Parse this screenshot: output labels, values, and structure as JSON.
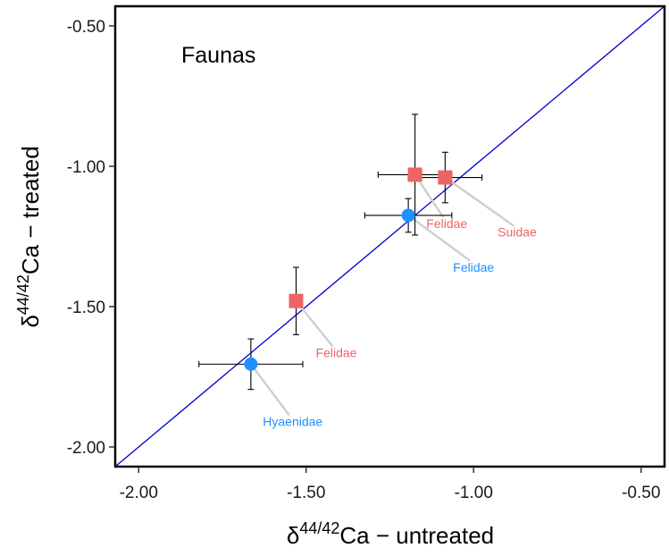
{
  "chart_data": {
    "type": "scatter",
    "title": "Faunas",
    "xlabel": {
      "prefix": "δ",
      "sup": "44/42",
      "suffix": "Ca − untreated"
    },
    "ylabel": {
      "prefix": "δ",
      "sup": "44/42",
      "suffix": "Ca − treated"
    },
    "xlim": [
      -2.07,
      -0.43
    ],
    "ylim": [
      -2.07,
      -0.43
    ],
    "x_ticks": [
      -2.0,
      -1.5,
      -1.0,
      -0.5
    ],
    "x_tick_labels": [
      "-2.00",
      "-1.50",
      "-1.00",
      "-0.50"
    ],
    "y_ticks": [
      -2.0,
      -1.5,
      -1.0,
      -0.5
    ],
    "y_tick_labels": [
      "-2.00",
      "-1.50",
      "-1.00",
      "-0.50"
    ],
    "grid": false,
    "reference_line": {
      "type": "1:1",
      "color": "#0000cc"
    },
    "series": [
      {
        "marker": "square",
        "color": "#ee6363",
        "points": [
          {
            "x": -1.53,
            "y": -1.48,
            "xerr": 0.0,
            "yerr": 0.12,
            "label": "Felidae",
            "label_at": [
              -1.41,
              -1.68
            ]
          },
          {
            "x": -1.175,
            "y": -1.03,
            "xerr": 0.11,
            "yerr": 0.215,
            "label": "Felidae",
            "label_at": [
              -1.08,
              -1.22
            ]
          },
          {
            "x": -1.085,
            "y": -1.04,
            "xerr": 0.11,
            "yerr": 0.09,
            "label": "Suidae",
            "label_at": [
              -0.87,
              -1.25
            ]
          }
        ]
      },
      {
        "marker": "circle",
        "color": "#1e90ff",
        "points": [
          {
            "x": -1.665,
            "y": -1.705,
            "xerr": 0.155,
            "yerr": 0.09,
            "label": "Hyaenidae",
            "label_at": [
              -1.54,
              -1.925
            ]
          },
          {
            "x": -1.195,
            "y": -1.175,
            "xerr": 0.13,
            "yerr": 0.06,
            "label": "Felidae",
            "label_at": [
              -1.0,
              -1.375
            ]
          }
        ]
      }
    ]
  }
}
